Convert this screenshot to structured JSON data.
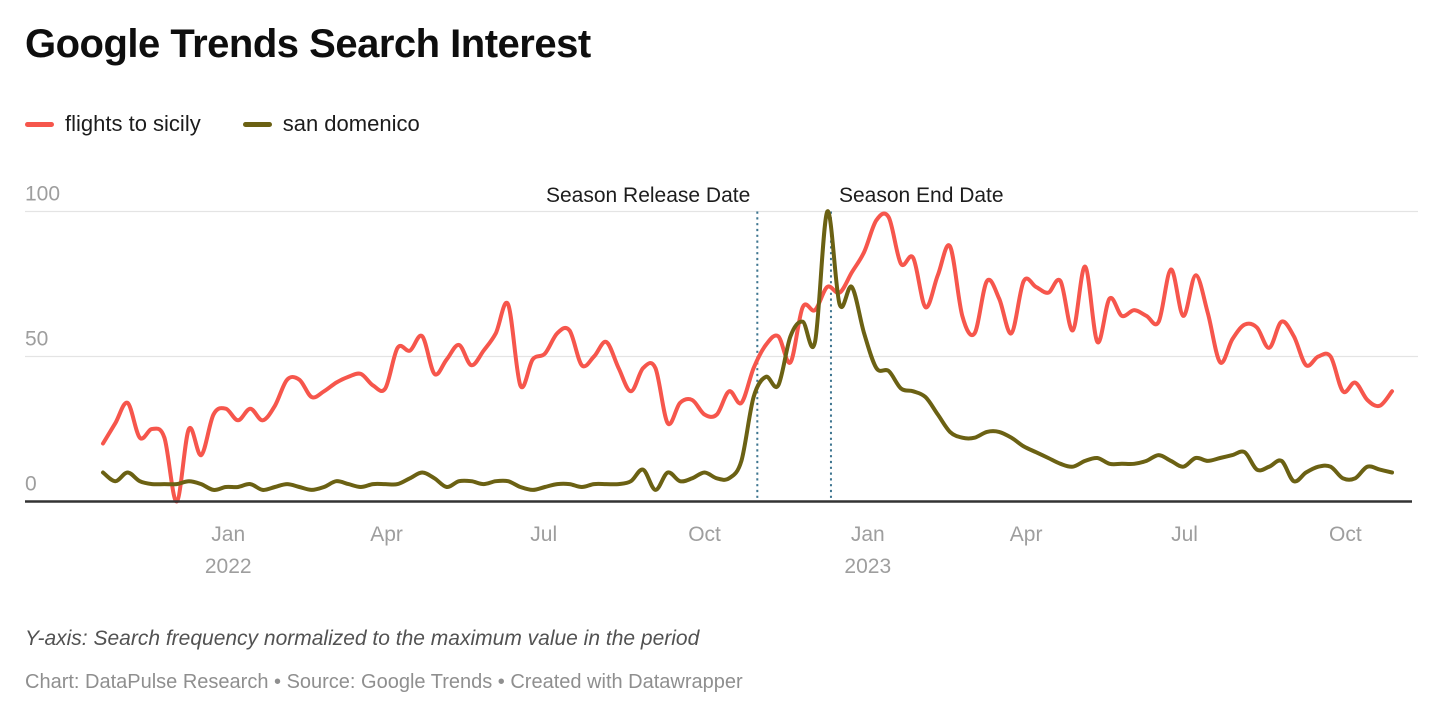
{
  "header": {
    "title": "Google Trends Search Interest"
  },
  "legend": {
    "items": [
      {
        "label": "flights to sicily",
        "color": "#f6564c"
      },
      {
        "label": "san domenico",
        "color": "#6b6113"
      }
    ]
  },
  "footer": {
    "note": "Y-axis: Search frequency normalized to the maximum value in the period",
    "credits": "Chart: DataPulse Research • Source: Google Trends • Created with Datawrapper"
  },
  "colors": {
    "gridline": "#e4e4e4",
    "axis": "#333333",
    "annotation_line": "#3f7690",
    "tick_text": "#9e9e9e",
    "annotation_text": "#1d1d1d"
  },
  "chart_data": {
    "type": "line",
    "title": "Google Trends Search Interest",
    "x_unit": "weeks",
    "ylim": [
      0,
      100
    ],
    "y_ticks": [
      0,
      50,
      100
    ],
    "grid": "horizontal",
    "legend_position": "top-left",
    "x_ticks": [
      {
        "label": "Jan",
        "sublabel": "2022",
        "pos": 10.2
      },
      {
        "label": "Apr",
        "pos": 23.1
      },
      {
        "label": "Jul",
        "pos": 35.9
      },
      {
        "label": "Oct",
        "pos": 49.0
      },
      {
        "label": "Jan",
        "sublabel": "2023",
        "pos": 62.3
      },
      {
        "label": "Apr",
        "pos": 75.2
      },
      {
        "label": "Jul",
        "pos": 88.1
      },
      {
        "label": "Oct",
        "pos": 101.2
      }
    ],
    "annotations": [
      {
        "label": "Season Release Date",
        "pos": 53.3,
        "align": "end"
      },
      {
        "label": "Season End Date",
        "pos": 59.3,
        "align": "start"
      }
    ],
    "series": [
      {
        "name": "flights to sicily",
        "color": "#f6564c",
        "values": [
          20,
          27,
          34,
          22,
          25,
          22,
          0,
          25,
          16,
          30,
          32,
          28,
          32,
          28,
          33,
          42,
          42,
          36,
          38,
          41,
          43,
          44,
          40,
          39,
          53,
          52,
          57,
          44,
          49,
          54,
          47,
          52,
          58,
          68,
          40,
          49,
          51,
          58,
          59,
          47,
          50,
          55,
          46,
          38,
          46,
          46,
          27,
          34,
          35,
          30,
          30,
          38,
          34,
          46,
          54,
          57,
          48,
          67,
          66,
          74,
          72,
          79,
          86,
          97,
          98,
          82,
          84,
          67,
          78,
          88,
          64,
          58,
          76,
          70,
          58,
          76,
          74,
          72,
          76,
          59,
          81,
          55,
          70,
          64,
          66,
          64,
          62,
          80,
          64,
          78,
          65,
          48,
          56,
          61,
          60,
          53,
          62,
          57,
          47,
          50,
          50,
          38,
          41,
          35,
          33,
          38
        ]
      },
      {
        "name": "san domenico",
        "color": "#6b6113",
        "values": [
          10,
          7,
          10,
          7,
          6,
          6,
          6,
          7,
          6,
          4,
          5,
          5,
          6,
          4,
          5,
          6,
          5,
          4,
          5,
          7,
          6,
          5,
          6,
          6,
          6,
          8,
          10,
          8,
          5,
          7,
          7,
          6,
          7,
          7,
          5,
          4,
          5,
          6,
          6,
          5,
          6,
          6,
          6,
          7,
          11,
          4,
          10,
          7,
          8,
          10,
          8,
          8,
          14,
          36,
          43,
          40,
          57,
          62,
          55,
          100,
          68,
          74,
          58,
          46,
          45,
          39,
          38,
          36,
          30,
          24,
          22,
          22,
          24,
          24,
          22,
          19,
          17,
          15,
          13,
          12,
          14,
          15,
          13,
          13,
          13,
          14,
          16,
          14,
          12,
          15,
          14,
          15,
          16,
          17,
          11,
          12,
          14,
          7,
          10,
          12,
          12,
          8,
          8,
          12,
          11,
          10
        ]
      }
    ]
  }
}
